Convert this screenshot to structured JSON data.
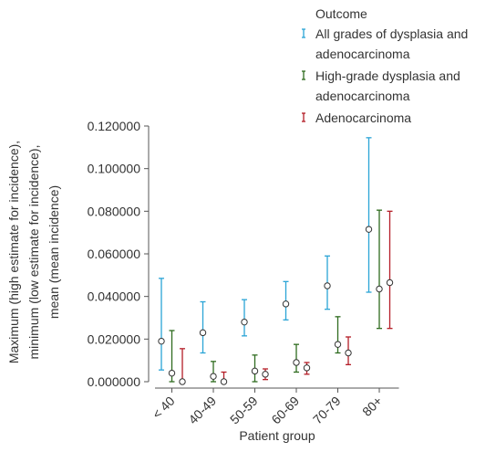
{
  "chart_data": {
    "type": "errorbar",
    "xlabel": "Patient group",
    "ylabel_lines": [
      "Maximum (high estimate for incidence),",
      "minimum (low estimate for incidence),",
      "mean (mean incidence)"
    ],
    "ylim": [
      0,
      0.12
    ],
    "yticks": [
      "0.000000",
      "0.020000",
      "0.040000",
      "0.060000",
      "0.080000",
      "0.100000",
      "0.120000"
    ],
    "ytick_values": [
      0,
      0.02,
      0.04,
      0.06,
      0.08,
      0.1,
      0.12
    ],
    "grid": false,
    "legend": {
      "title": "Outcome",
      "placement": "top-right",
      "entries": [
        [
          "All grades of dysplasia and",
          "adenocarcinoma"
        ],
        [
          "High-grade dysplasia and",
          "adenocarcinoma"
        ],
        [
          "Adenocarcinoma"
        ]
      ]
    },
    "categories": [
      "< 40",
      "40-49",
      "50-59",
      "60-69",
      "70-79",
      "80+"
    ],
    "series": [
      {
        "color": "#2aa4d6",
        "mean": [
          0.019,
          0.023,
          0.028,
          0.0365,
          0.045,
          0.0715
        ],
        "low": [
          0.0055,
          0.0135,
          0.0215,
          0.029,
          0.034,
          0.042
        ],
        "high": [
          0.0485,
          0.0375,
          0.0385,
          0.047,
          0.059,
          0.1145
        ]
      },
      {
        "color": "#2e6b1e",
        "mean": [
          0.004,
          0.0025,
          0.005,
          0.009,
          0.0175,
          0.0435
        ],
        "low": [
          0.0,
          0.0,
          0.0,
          0.0045,
          0.0135,
          0.025
        ],
        "high": [
          0.024,
          0.0095,
          0.0125,
          0.0175,
          0.0305,
          0.0805
        ]
      },
      {
        "color": "#b41d27",
        "mean": [
          0.0,
          0.0,
          0.0035,
          0.0065,
          0.0135,
          0.0465
        ],
        "low": [
          0.0,
          0.0,
          0.001,
          0.0035,
          0.008,
          0.025
        ],
        "high": [
          0.0155,
          0.0045,
          0.006,
          0.009,
          0.021,
          0.08
        ]
      }
    ]
  }
}
